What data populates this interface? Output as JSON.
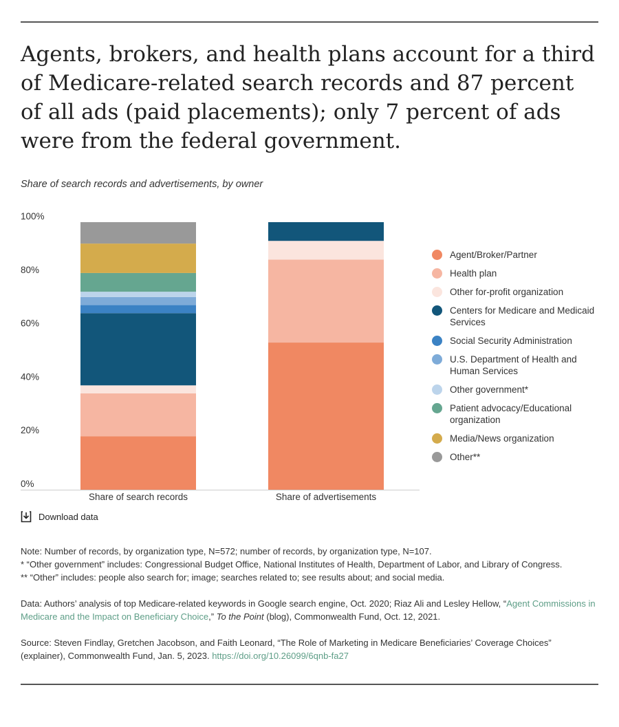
{
  "title": "Agents, brokers, and health plans account for a third of Medicare-related search records and 87 percent of all ads (paid placements); only 7 percent of ads were from the federal government.",
  "subtitle": "Share of search records and advertisements, by owner",
  "download_label": "Download data",
  "chart_data": {
    "type": "bar",
    "stacked": true,
    "categories": [
      "Share of search records",
      "Share of advertisements"
    ],
    "ylim": [
      0,
      100
    ],
    "yticks": [
      "0%",
      "20%",
      "40%",
      "60%",
      "80%",
      "100%"
    ],
    "legend_position": "right",
    "grid": false,
    "series": [
      {
        "name": "Agent/Broker/Partner",
        "color": "#f08862",
        "values": [
          20,
          55
        ]
      },
      {
        "name": "Health plan",
        "color": "#f6b6a2",
        "values": [
          16,
          31
        ]
      },
      {
        "name": "Other for-profit organization",
        "color": "#fbe5de",
        "values": [
          3,
          7
        ]
      },
      {
        "name": "Centers for Medicare and Medicaid Services",
        "color": "#12567a",
        "values": [
          27,
          7
        ]
      },
      {
        "name": "Social Security Administration",
        "color": "#3b82c4",
        "values": [
          3,
          0
        ]
      },
      {
        "name": "U.S. Department of Health and Human Services",
        "color": "#7eabd8",
        "values": [
          3,
          0
        ]
      },
      {
        "name": "Other government*",
        "color": "#bcd4eb",
        "values": [
          2,
          0
        ]
      },
      {
        "name": "Patient advocacy/Educational organization",
        "color": "#65a690",
        "values": [
          7,
          0
        ]
      },
      {
        "name": "Media/News organization",
        "color": "#d4ab4c",
        "values": [
          11,
          0
        ]
      },
      {
        "name": "Other**",
        "color": "#999999",
        "values": [
          8,
          0
        ]
      }
    ]
  },
  "notes": {
    "note": "Note: Number of records, by organization type, N=572; number of records, by organization type, N=107.",
    "star1": "* “Other government” includes: Congressional Budget Office, National Institutes of Health, Department of Labor, and Library of Congress.",
    "star2": "** “Other” includes: people also search for; image; searches related to; see results about; and social media.",
    "data_pre": "Data: Authors’ analysis of top Medicare-related keywords in Google search engine, Oct. 2020; Riaz Ali and Lesley Hellow, “",
    "data_link": "Agent Commissions in Medicare and the Impact on Beneficiary Choice",
    "data_mid": ",” ",
    "data_italic": "To the Point",
    "data_post": " (blog), Commonwealth Fund, Oct. 12, 2021.",
    "source": "Source: Steven Findlay, Gretchen Jacobson, and Faith Leonard, “The Role of Marketing in Medicare Beneficiaries’ Coverage Choices” (explainer), Commonwealth Fund, Jan. 5, 2023. ",
    "source_link": "https://doi.org/10.26099/6qnb-fa27"
  }
}
